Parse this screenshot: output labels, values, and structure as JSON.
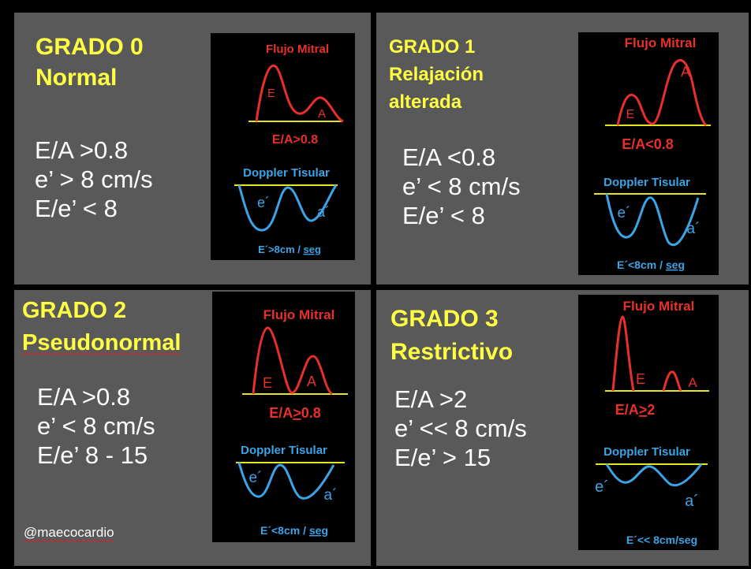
{
  "colors": {
    "panel": "#595959",
    "title": "#ffff44",
    "mitral": "#e8302a",
    "tissue": "#3ba4e6",
    "baseline": "#e6e620"
  },
  "panels": [
    {
      "title_line1": "GRADO 0",
      "title_line2": "Normal",
      "title_line3": "",
      "stats": [
        "E/A >0.8",
        "e’ > 8 cm/s",
        "E/e’ < 8"
      ],
      "diagram": {
        "mitral_title": "Flujo Mitral",
        "peak_e": "E",
        "peak_a": "A",
        "ratio": "E/A>0.8",
        "tissue_title": "Doppler Tisular",
        "wave_e": "e´",
        "wave_a": "a´",
        "velocity": "E´>8cm / seg",
        "velocity_main": "E´>8cm / ",
        "velocity_unit": "seg"
      }
    },
    {
      "title_line1": "GRADO 1",
      "title_line2": "Relajación",
      "title_line3": "alterada",
      "stats": [
        "E/A <0.8",
        "e’ < 8 cm/s",
        "E/e’ < 8"
      ],
      "diagram": {
        "mitral_title": "Flujo Mitral",
        "peak_e": "E",
        "peak_a": "A",
        "ratio": "E/A<0.8",
        "tissue_title": "Doppler Tisular",
        "wave_e": "e´",
        "wave_a": "a´",
        "velocity": "E´<8cm / seg",
        "velocity_main": "E´<8cm / ",
        "velocity_unit": "seg"
      }
    },
    {
      "title_line1": "GRADO 2",
      "title_line2": "Pseudonormal",
      "title_line3": "",
      "stats": [
        "E/A >0.8",
        "e’ < 8 cm/s",
        "E/e’ 8 - 15"
      ],
      "diagram": {
        "mitral_title": "Flujo Mitral",
        "peak_e": "E",
        "peak_a": "A",
        "ratio": "E/A>0.8",
        "ratio_pre": "E/A",
        "ratio_op": ">",
        "ratio_post": "0.8",
        "tissue_title": "Doppler Tisular",
        "wave_e": "e´",
        "wave_a": "a´",
        "velocity": "E´<8cm / seg",
        "velocity_main": "E´<8cm / ",
        "velocity_unit": "seg"
      }
    },
    {
      "title_line1": "GRADO 3",
      "title_line2": "Restrictivo",
      "title_line3": "",
      "stats": [
        "E/A >2",
        "e’ << 8 cm/s",
        "E/e’ > 15"
      ],
      "diagram": {
        "mitral_title": "Flujo Mitral",
        "peak_e": "E",
        "peak_a": "A",
        "ratio": "E/A>2",
        "ratio_pre": "E/A",
        "ratio_op": ">",
        "ratio_post": "2",
        "tissue_title": "Doppler Tisular",
        "wave_e": "e´",
        "wave_a": "a´",
        "velocity": "E´<< 8cm/seg"
      }
    }
  ],
  "watermark": "@maecocardio"
}
